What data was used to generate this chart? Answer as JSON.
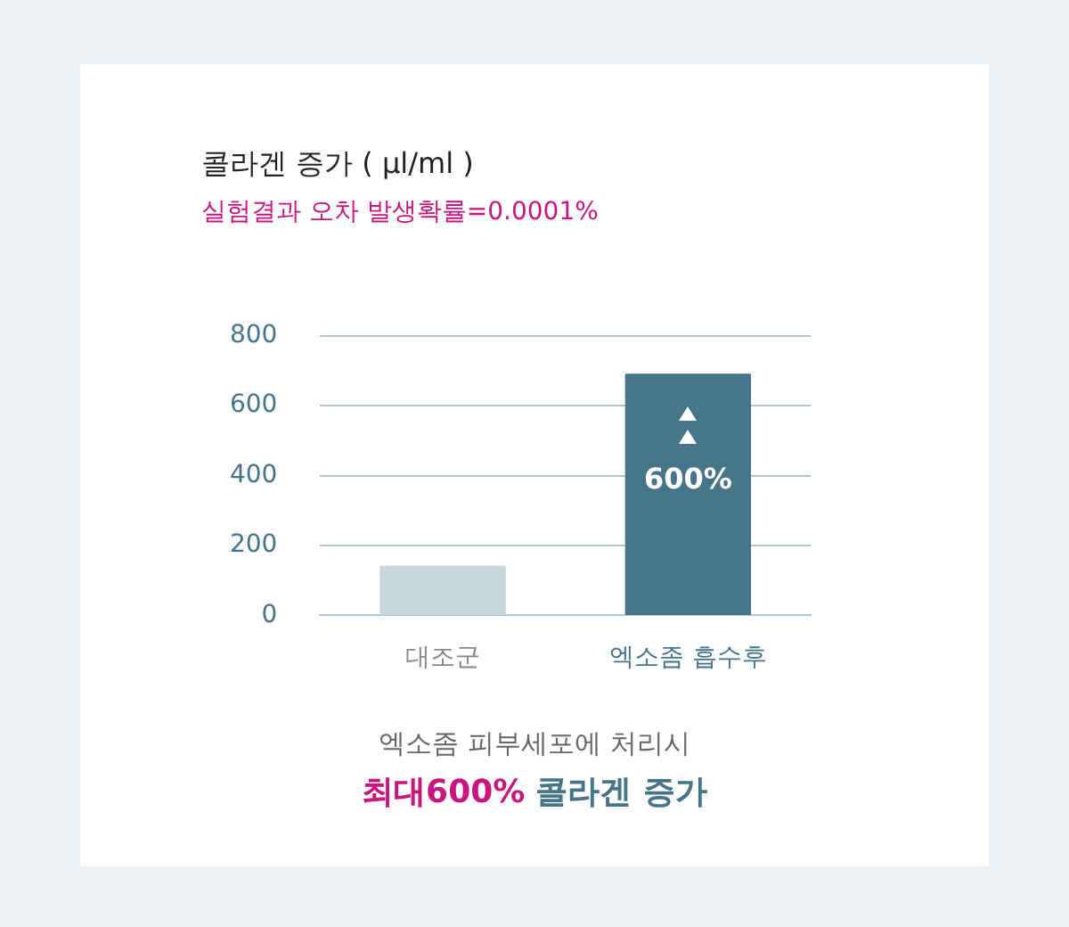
{
  "chart_data": {
    "type": "bar",
    "title": "콜라겐 증가 ( µl/ml )",
    "subtitle": "실험결과 오차 발생확률=0.0001%",
    "categories": [
      "대조군",
      "엑소좀 흡수후"
    ],
    "values": [
      140,
      690
    ],
    "colors": [
      "#c9d5dc",
      "#46758a"
    ],
    "ylim": [
      0,
      800
    ],
    "yticks": [
      0,
      200,
      400,
      600,
      800
    ],
    "grid": "y",
    "legend": false,
    "annotations": [
      "600%",
      "엑소좀 피부세포에 처리시",
      "최대600%",
      "콜라겐 증가"
    ]
  }
}
